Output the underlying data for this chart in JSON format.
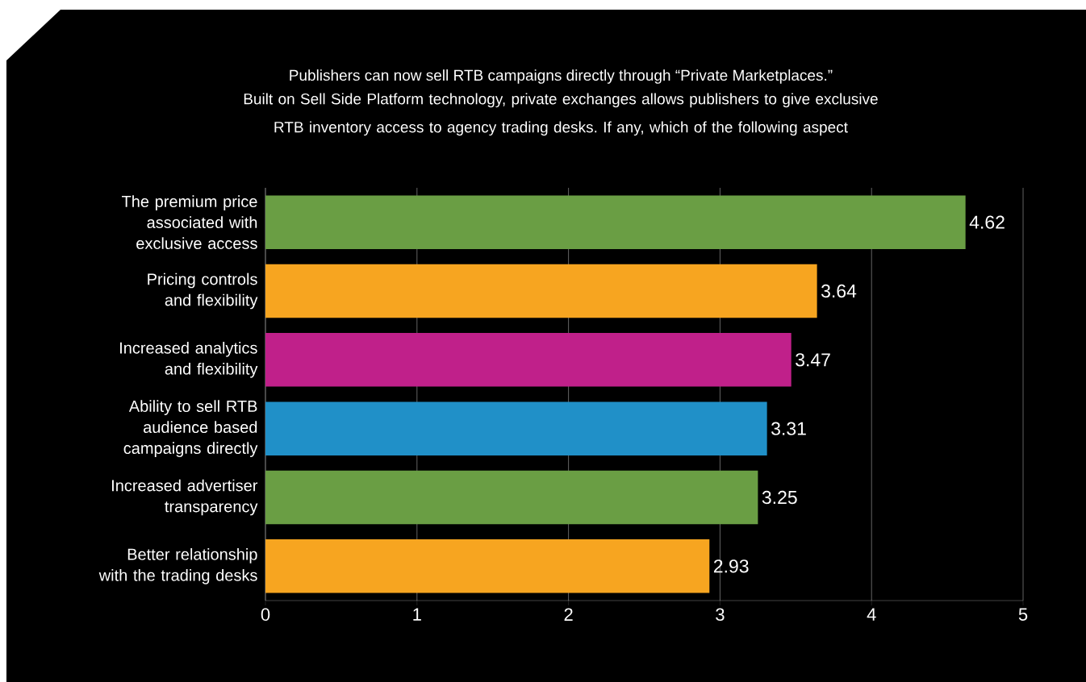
{
  "chart_data": {
    "type": "bar",
    "orientation": "horizontal",
    "title": "Publishers can now sell RTB campaigns directly through “Private Marketplaces.”",
    "subtitle": "Built on Sell Side Platform technology, private exchanges allows publishers to give exclusive RTB inventory access to agency trading desks. If any, which of the following aspect",
    "categories": [
      "The premium price associated with exclusive access",
      "Pricing controls and flexibility",
      "Increased analytics and flexibility",
      "Ability to sell RTB audience based campaigns directly",
      "Increased advertiser transparency",
      "Better relationship with the trading desks"
    ],
    "values": [
      4.62,
      3.64,
      3.47,
      3.31,
      3.25,
      2.93
    ],
    "colors": [
      "#6a9e44",
      "#f7a520",
      "#c0208a",
      "#2090c8",
      "#6a9e44",
      "#f7a520"
    ],
    "xlim": [
      0,
      5
    ],
    "xticks": [
      0,
      1,
      2,
      3,
      4,
      5
    ],
    "grid": "x",
    "data_labels": true
  }
}
